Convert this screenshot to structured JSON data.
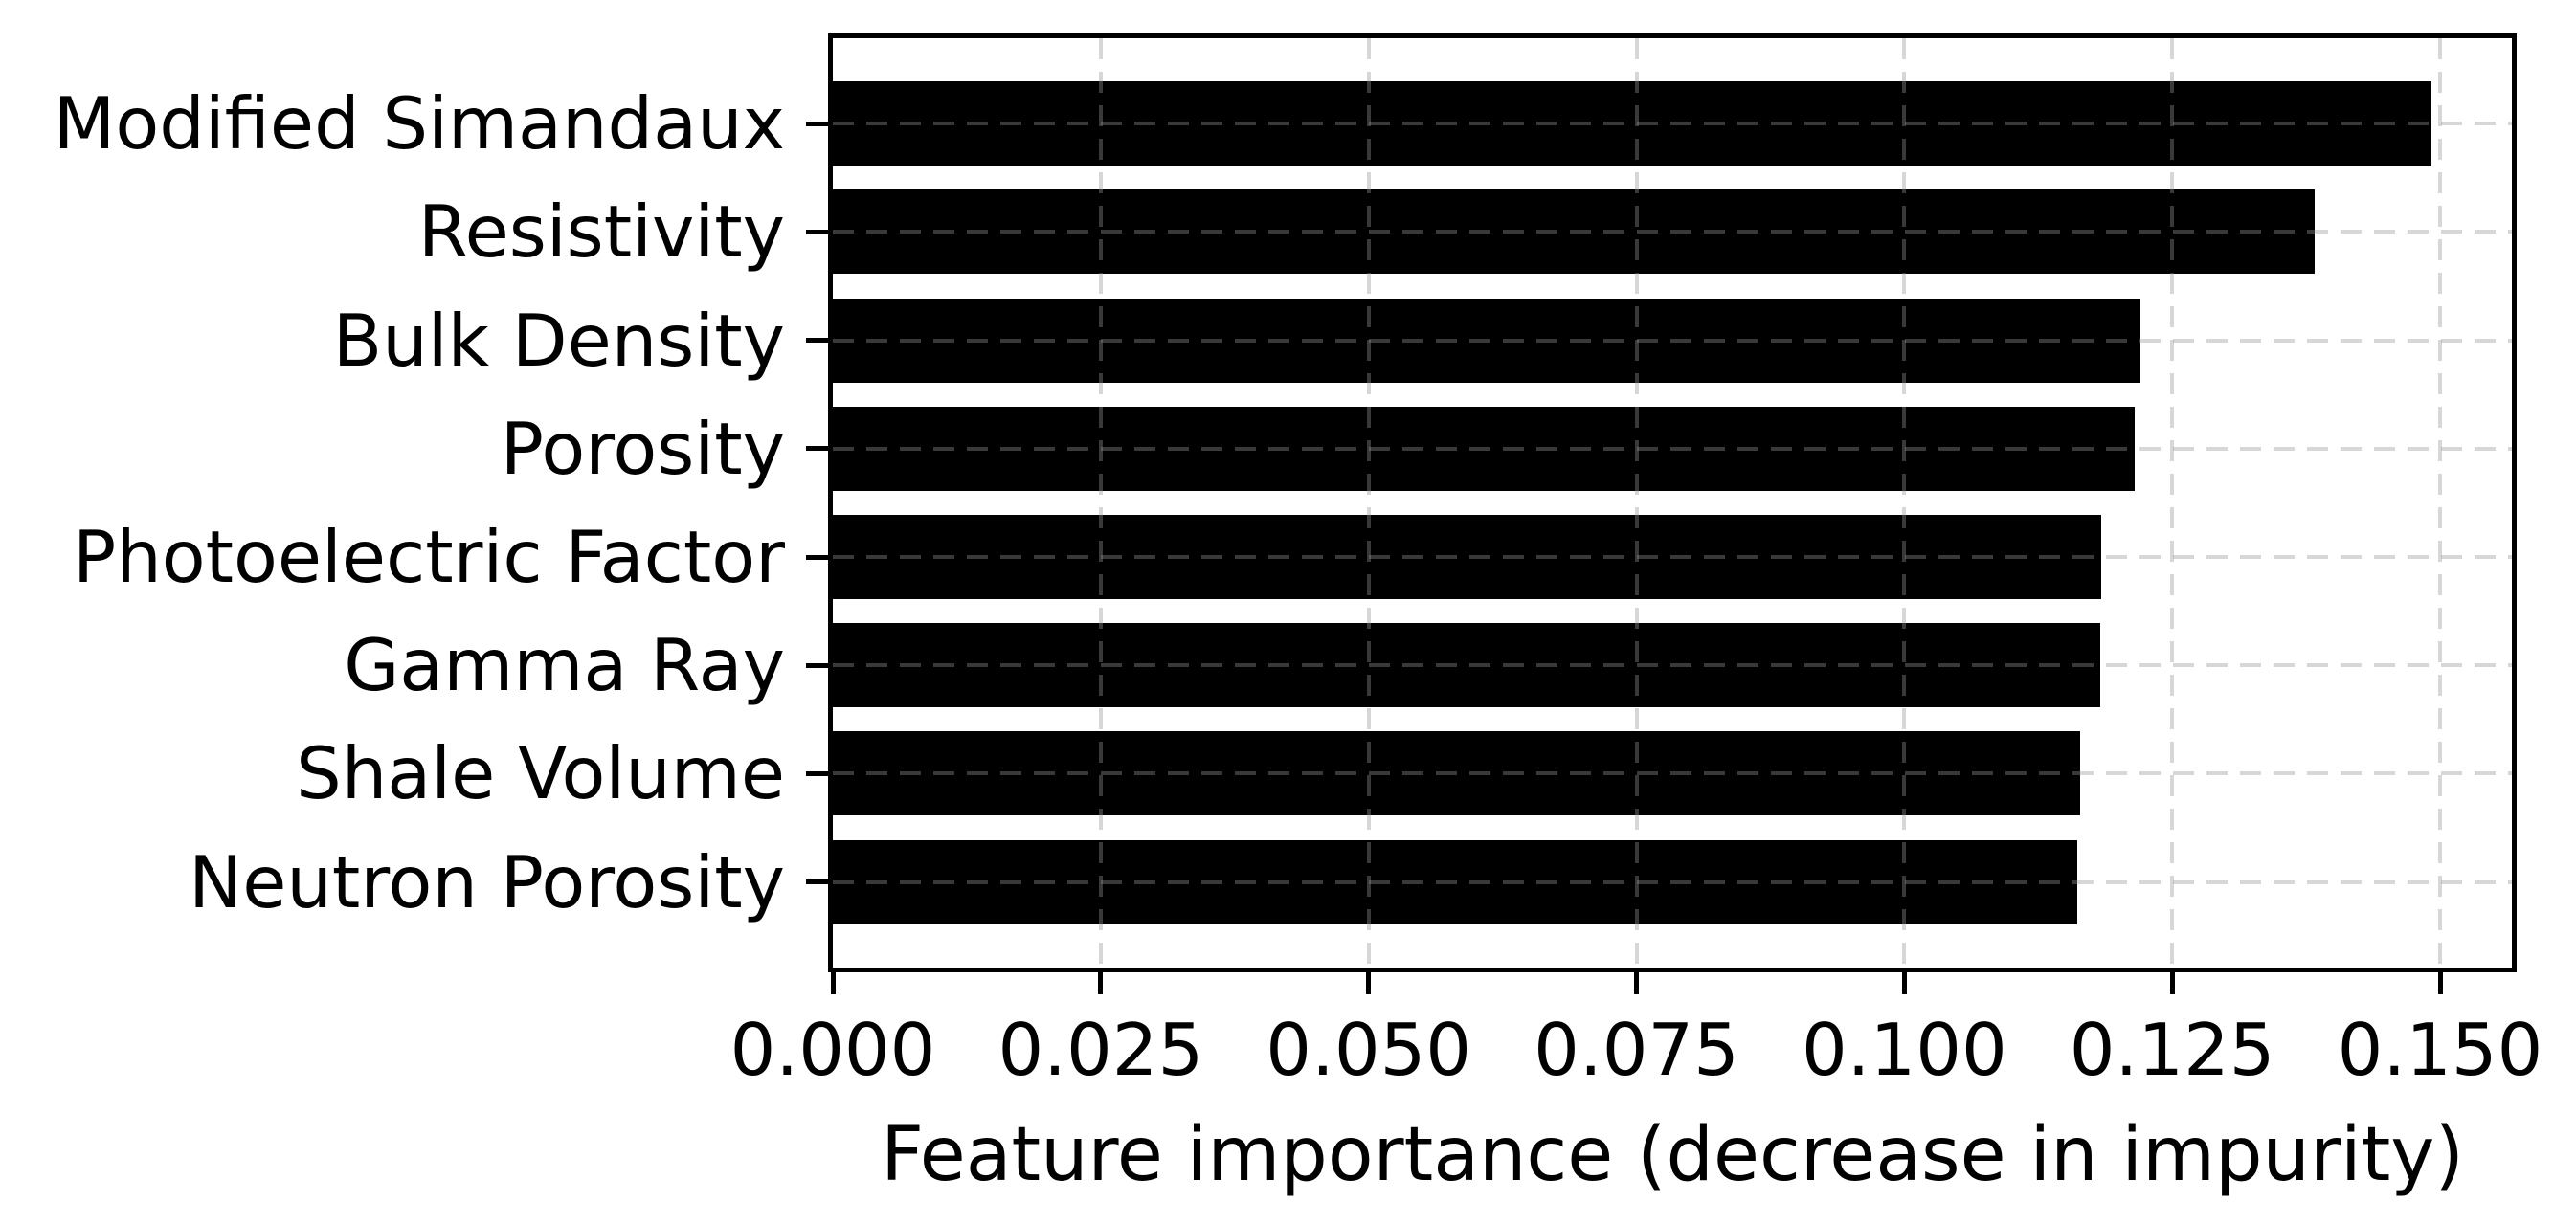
{
  "chart_data": {
    "type": "bar",
    "orientation": "horizontal",
    "title": "",
    "xlabel": "Feature importance (decrease in impurity)",
    "ylabel": "",
    "categories": [
      "Modified Simandaux",
      "Resistivity",
      "Bulk Density",
      "Porosity",
      "Photoelectric Factor",
      "Gamma Ray",
      "Shale Volume",
      "Neutron Porosity"
    ],
    "values": [
      0.1492,
      0.1383,
      0.122,
      0.1215,
      0.1184,
      0.1183,
      0.1164,
      0.1161
    ],
    "xlim": [
      0,
      0.1567
    ],
    "xticks": [
      0.0,
      0.025,
      0.05,
      0.075,
      0.1,
      0.125,
      0.15
    ],
    "xtick_labels": [
      "0.000",
      "0.025",
      "0.050",
      "0.075",
      "0.100",
      "0.125",
      "0.150"
    ],
    "grid": "both-axes dashed, drawn over bars",
    "legend_position": "none",
    "bar_color": "#000000",
    "background_color": "#ffffff",
    "gridline_color": "rgba(150,150,150,0.38)",
    "spine_color": "#000000"
  }
}
